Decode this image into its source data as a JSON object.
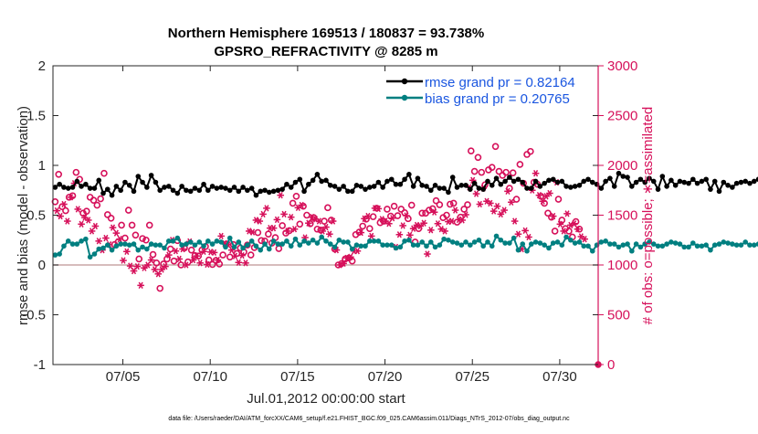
{
  "chart_data": {
    "type": "line",
    "title": "Northern Hemisphere 169513 / 180837 = 93.738%",
    "subtitle": "GPSRO_REFRACTIVITY @ 8285 m",
    "xlabel": "Jul.01,2012 00:00:00 start",
    "ylabel": "rmse and bias (model - observation)",
    "y2label": "# of obs: o=possible; ∗=assimilated",
    "footer": "data file: /Users/raeder/DAI/ATM_forcXX/CAM6_setup/f.e21.FHIST_BGC.f09_025.CAM6assim.011/Diags_NTrS_2012-07/obs_diag_output.nc",
    "x_range_days": [
      1.0,
      32.2
    ],
    "ylim": [
      -1,
      2
    ],
    "y2lim": [
      0,
      3000
    ],
    "y_ticks": [
      "-1",
      "-0.5",
      "0",
      "0.5",
      "1",
      "1.5",
      "2"
    ],
    "y2_ticks": [
      "0",
      "500",
      "1000",
      "1500",
      "2000",
      "2500",
      "3000"
    ],
    "x_ticks": [
      {
        "day": 5,
        "label": "07/05"
      },
      {
        "day": 10,
        "label": "07/10"
      },
      {
        "day": 15,
        "label": "07/15"
      },
      {
        "day": 20,
        "label": "07/20"
      },
      {
        "day": 25,
        "label": "07/25"
      },
      {
        "day": 30,
        "label": "07/30"
      }
    ],
    "legend": [
      "rmse grand pr = 0.82164",
      "bias grand pr = 0.20765"
    ],
    "legend_position": "top-right",
    "colors": {
      "rmse": "#000000",
      "bias": "#007f80",
      "obs": "#d6105a",
      "zero": "#c8a6a6",
      "label": "#1a56e0"
    },
    "x_start_day": 1.125,
    "x_step_day": 0.25,
    "series": [
      {
        "name": "rmse",
        "axis": "left",
        "values": [
          0.78,
          0.81,
          0.78,
          0.77,
          0.78,
          0.84,
          0.79,
          0.81,
          0.77,
          0.77,
          0.85,
          0.72,
          0.76,
          0.7,
          0.79,
          0.75,
          0.83,
          0.8,
          0.74,
          0.89,
          0.83,
          0.78,
          0.9,
          0.83,
          0.75,
          0.78,
          0.79,
          0.75,
          0.72,
          0.79,
          0.75,
          0.74,
          0.77,
          0.75,
          0.81,
          0.75,
          0.79,
          0.77,
          0.78,
          0.77,
          0.75,
          0.78,
          0.74,
          0.78,
          0.75,
          0.77,
          0.7,
          0.74,
          0.75,
          0.73,
          0.74,
          0.75,
          0.76,
          0.81,
          0.78,
          0.83,
          0.86,
          0.74,
          0.81,
          0.85,
          0.91,
          0.84,
          0.85,
          0.8,
          0.79,
          0.76,
          0.79,
          0.74,
          0.74,
          0.8,
          0.79,
          0.76,
          0.78,
          0.79,
          0.83,
          0.78,
          0.84,
          0.86,
          0.81,
          0.81,
          0.86,
          0.91,
          0.79,
          0.87,
          0.8,
          0.79,
          0.75,
          0.8,
          0.77,
          0.77,
          0.73,
          0.88,
          0.78,
          0.8,
          0.8,
          0.76,
          0.82,
          0.77,
          0.76,
          0.84,
          0.8,
          0.87,
          0.81,
          0.84,
          0.88,
          0.84,
          0.86,
          0.83,
          0.77,
          0.77,
          0.84,
          0.79,
          0.82,
          0.85,
          0.86,
          0.83,
          0.84,
          0.79,
          0.78,
          0.79,
          0.8,
          0.84,
          0.86,
          0.83,
          0.81,
          0.77,
          0.84,
          0.87,
          0.79,
          0.92,
          0.89,
          0.88,
          0.79,
          0.83,
          0.86,
          0.83,
          0.87,
          0.84,
          0.76,
          0.89,
          0.79,
          0.85,
          0.8,
          0.84,
          0.83,
          0.82,
          0.86,
          0.82,
          0.84,
          0.86,
          0.76,
          0.84,
          0.74,
          0.83,
          0.8,
          0.78,
          0.82,
          0.83,
          0.84,
          0.82,
          0.84,
          0.86,
          0.76,
          0.85,
          0.82,
          0.76,
          0.78,
          0.84,
          0.84,
          0.86,
          0.92,
          0.84,
          0.82,
          0.8,
          0.85,
          0.86,
          0.81,
          0.77,
          0.86,
          0.84,
          0.82,
          0.79,
          0.89,
          0.85,
          0.82,
          0.73,
          0.76,
          0.79,
          0.78,
          0.83,
          0.8,
          0.77,
          0.84,
          0.8,
          0.76,
          0.8,
          0.89,
          0.79,
          0.76,
          0.79,
          0.81,
          0.92,
          0.83,
          0.8,
          0.84,
          0.83,
          0.78,
          0.83,
          0.79,
          0.85,
          0.79,
          0.87,
          0.78,
          0.79,
          0.87,
          0.82,
          0.85,
          0.9,
          0.79,
          0.85,
          0.9,
          0.78,
          0.86,
          0.81,
          0.93,
          0.89,
          0.84,
          0.8,
          0.86,
          0.8,
          0.84,
          0.88,
          0.8,
          0.88,
          0.86,
          0.79,
          0.87,
          0.82,
          0.93,
          0.87,
          0.88,
          0.77,
          0.81,
          0.86,
          0.9,
          0.79,
          0.83,
          0.85,
          0.87,
          0.85,
          0.85,
          0.86,
          0.77,
          0.87,
          0.85,
          0.83,
          0.89,
          0.87,
          0.87,
          0.85,
          0.88,
          0.81,
          0.93,
          0.89,
          0.88,
          0.79,
          0.95,
          0.95,
          0.94
        ]
      },
      {
        "name": "bias",
        "axis": "left",
        "values": [
          0.1,
          0.11,
          0.19,
          0.24,
          0.21,
          0.21,
          0.24,
          0.26,
          0.08,
          0.11,
          0.16,
          0.17,
          0.2,
          0.15,
          0.19,
          0.21,
          0.21,
          0.2,
          0.21,
          0.15,
          0.18,
          0.16,
          0.21,
          0.2,
          0.2,
          0.17,
          0.24,
          0.24,
          0.27,
          0.2,
          0.21,
          0.23,
          0.2,
          0.23,
          0.19,
          0.24,
          0.21,
          0.24,
          0.23,
          0.18,
          0.27,
          0.18,
          0.23,
          0.17,
          0.2,
          0.24,
          0.19,
          0.15,
          0.21,
          0.16,
          0.24,
          0.21,
          0.21,
          0.24,
          0.19,
          0.26,
          0.2,
          0.24,
          0.22,
          0.25,
          0.22,
          0.28,
          0.24,
          0.21,
          0.18,
          0.25,
          0.23,
          0.23,
          0.16,
          0.2,
          0.19,
          0.19,
          0.24,
          0.24,
          0.24,
          0.2,
          0.2,
          0.2,
          0.17,
          0.18,
          0.24,
          0.25,
          0.2,
          0.2,
          0.23,
          0.19,
          0.23,
          0.18,
          0.2,
          0.26,
          0.25,
          0.23,
          0.22,
          0.2,
          0.23,
          0.2,
          0.23,
          0.25,
          0.19,
          0.23,
          0.19,
          0.29,
          0.25,
          0.22,
          0.22,
          0.27,
          0.15,
          0.21,
          0.14,
          0.21,
          0.23,
          0.22,
          0.2,
          0.17,
          0.22,
          0.23,
          0.2,
          0.28,
          0.25,
          0.22,
          0.23,
          0.19,
          0.19,
          0.14,
          0.2,
          0.23,
          0.24,
          0.21,
          0.21,
          0.18,
          0.2,
          0.21,
          0.14,
          0.21,
          0.18,
          0.21,
          0.23,
          0.21,
          0.19,
          0.19,
          0.21,
          0.23,
          0.22,
          0.21,
          0.18,
          0.18,
          0.22,
          0.19,
          0.19,
          0.2,
          0.15,
          0.2,
          0.21,
          0.23,
          0.22,
          0.21,
          0.2,
          0.2,
          0.23,
          0.2,
          0.2,
          0.21,
          0.2,
          0.22,
          0.16,
          0.24,
          0.18,
          0.19,
          0.22,
          0.25,
          0.22,
          0.21,
          0.23,
          0.21,
          0.26,
          0.19,
          0.19,
          0.21,
          0.23,
          0.2,
          0.19,
          0.21,
          0.22,
          0.21,
          0.26,
          0.24,
          0.19,
          0.22,
          0.24,
          0.19,
          0.21,
          0.16,
          0.23,
          0.23,
          0.19,
          0.25,
          0.21,
          0.2,
          0.22,
          0.25,
          0.19,
          0.21,
          0.2,
          0.19,
          0.21,
          0.21,
          0.24,
          0.2,
          0.21,
          0.25,
          0.2,
          0.22,
          0.25,
          0.27,
          0.22,
          0.22,
          0.22,
          0.22,
          0.28,
          0.22,
          0.17,
          0.2,
          0.23,
          0.22,
          0.27,
          0.24,
          0.2,
          0.2,
          0.25,
          0.25,
          0.17,
          0.23,
          0.31,
          0.28,
          0.23,
          0.25,
          0.2,
          0.19,
          0.26,
          0.27,
          0.17,
          0.31,
          0.28,
          0.19,
          0.22,
          0.2,
          0.2,
          0.21,
          0.22,
          0.23,
          0.21,
          0.2,
          0.18,
          0.21,
          0.21,
          0.21,
          0.19,
          0.23,
          0.21,
          0.21,
          0.21,
          0.22,
          0.22,
          0.22,
          0.2,
          0.21,
          0.19,
          0.21,
          0.21
        ]
      },
      {
        "name": "obs_possible",
        "axis": "right",
        "values": [
          1635,
          1910,
          1585,
          1545,
          1680,
          1695,
          1930,
          1860,
          1520,
          1540,
          1680,
          1650,
          1600,
          1665,
          1920,
          1505,
          1470,
          1205,
          1230,
          1400,
          1270,
          1550,
          1400,
          1300,
          1060,
          1265,
          1250,
          1400,
          1105,
          1020,
          765,
          1010,
          1060,
          1160,
          1040,
          1245,
          1000,
          1170,
          1030,
          1150,
          1095,
          1090,
          1150,
          1185,
          1050,
          1005,
          1045,
          1010,
          1100,
          1210,
          1080,
          1205,
          1115,
          1170,
          1130,
          1200,
          1100,
          1175,
          1325,
          1245,
          1240,
          1310,
          1220,
          1275,
          1165,
          1395,
          1320,
          1345,
          1620,
          1690,
          1410,
          1590,
          1500,
          1415,
          1475,
          1360,
          1350,
          1440,
          1575,
          1450,
          1160,
          1000,
          1015,
          1060,
          1070,
          1040,
          1305,
          1330,
          1390,
          1460,
          1365,
          1485,
          1570,
          1425,
          1440,
          1560,
          1490,
          1590,
          1495,
          1560,
          1525,
          1465,
          1600,
          1230,
          1365,
          1520,
          1520,
          1550,
          1565,
          1645,
          1605,
          1475,
          1500,
          1610,
          1620,
          1430,
          1480,
          1560,
          1605,
          2145,
          1940,
          2080,
          1930,
          1805,
          1955,
          1980,
          2190,
          1940,
          1900,
          1930,
          1770,
          1925,
          1660,
          2010,
          1820,
          2110,
          2140,
          1830,
          1810,
          1690,
          1620,
          1520,
          1480,
          1340,
          1660,
          1450,
          1365,
          1340,
          1280,
          1435,
          1360
        ]
      },
      {
        "name": "obs_assimilated",
        "axis": "right",
        "values": [
          1545,
          1490,
          1610,
          1440,
          1680,
          1820,
          1560,
          1410,
          1475,
          1450,
          1340,
          1390,
          1240,
          1150,
          1270,
          1205,
          1375,
          1320,
          1260,
          1045,
          1135,
          990,
          940,
          985,
          795,
          970,
          1000,
          1050,
          955,
          910,
          955,
          985,
          1100,
          1250,
          1140,
          1060,
          1160,
          1000,
          1235,
          1050,
          1090,
          1020,
          1135,
          1005,
          1130,
          1125,
          1050,
          1290,
          1215,
          1205,
          1150,
          1090,
          1025,
          1095,
          1020,
          1340,
          1330,
          1450,
          1440,
          1510,
          1570,
          1370,
          1370,
          1455,
          1700,
          1510,
          1340,
          1480,
          1360,
          1575,
          1600,
          1275,
          1420,
          1480,
          1460,
          1440,
          1340,
          1380,
          1310,
          1440,
          1150,
          1000,
          1015,
          1070,
          1080,
          1140,
          1140,
          1325,
          1465,
          1490,
          1290,
          1570,
          1565,
          1460,
          1440,
          1415,
          1470,
          1180,
          1305,
          1395,
          1495,
          1300,
          1365,
          1400,
          1390,
          1420,
          1110,
          1350,
          1530,
          1415,
          1360,
          1340,
          1435,
          1440,
          1550,
          1455,
          1450,
          1505,
          1780,
          1850,
          1715,
          1610,
          1770,
          1640,
          1620,
          1540,
          1590,
          1510,
          1550,
          1740,
          1630,
          1440,
          1310,
          1160,
          1345,
          1280,
          1750,
          1920,
          1700,
          1640,
          1690,
          1720,
          1490,
          1830,
          1410,
          1340,
          1515,
          1400,
          1415,
          1360,
          1285,
          1260
        ]
      }
    ]
  }
}
